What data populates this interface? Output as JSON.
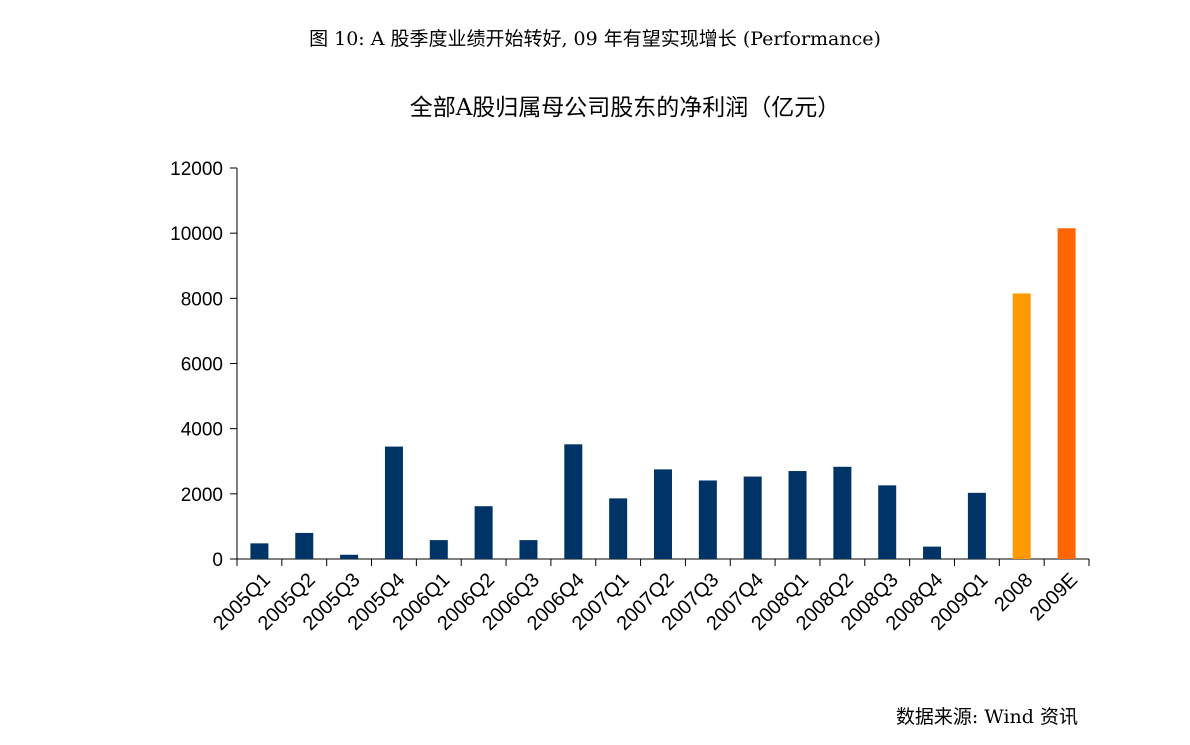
{
  "figure": {
    "caption": "图 10: A 股季度业绩开始转好, 09 年有望实现增长 (Performance)",
    "source": "数据来源: Wind 资讯"
  },
  "colors": {
    "quarterly": "#003366",
    "forecast_2008": "#FF9900",
    "forecast_2009E": "#FF6600",
    "axis": "#000000"
  },
  "chart_data": {
    "type": "bar",
    "title": "全部A股归属母公司股东的净利润（亿元）",
    "xlabel": "",
    "ylabel": "",
    "ylim": [
      0,
      12000
    ],
    "yticks": [
      0,
      2000,
      4000,
      6000,
      8000,
      10000,
      12000
    ],
    "grid": false,
    "legend": "none",
    "categories": [
      "2005Q1",
      "2005Q2",
      "2005Q3",
      "2005Q4",
      "2006Q1",
      "2006Q2",
      "2006Q3",
      "2006Q4",
      "2007Q1",
      "2007Q2",
      "2007Q3",
      "2007Q4",
      "2008Q1",
      "2008Q2",
      "2008Q3",
      "2008Q4",
      "2009Q1",
      "2008",
      "2009E"
    ],
    "values": [
      480,
      800,
      130,
      3450,
      580,
      1620,
      580,
      3520,
      1860,
      2750,
      2410,
      2530,
      2700,
      2830,
      2260,
      380,
      2030,
      8150,
      10150
    ],
    "bar_colors": [
      "#003366",
      "#003366",
      "#003366",
      "#003366",
      "#003366",
      "#003366",
      "#003366",
      "#003366",
      "#003366",
      "#003366",
      "#003366",
      "#003366",
      "#003366",
      "#003366",
      "#003366",
      "#003366",
      "#003366",
      "#FF9900",
      "#FF6600"
    ]
  }
}
